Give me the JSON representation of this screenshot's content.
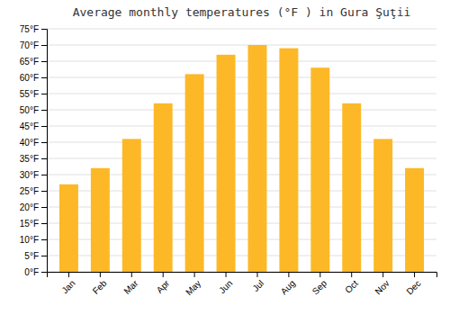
{
  "chart_data": {
    "type": "bar",
    "title": "Average monthly temperatures (°F ) in Gura Şuţii",
    "categories": [
      "Jan",
      "Feb",
      "Mar",
      "Apr",
      "May",
      "Jun",
      "Jul",
      "Aug",
      "Sep",
      "Oct",
      "Nov",
      "Dec"
    ],
    "values": [
      27,
      32,
      41,
      52,
      61,
      67,
      70,
      69,
      63,
      52,
      41,
      32
    ],
    "color": "#FDB827",
    "ylim": [
      0,
      75
    ],
    "yticks": [
      {
        "value": 0,
        "label": "0°F"
      },
      {
        "value": 5,
        "label": "5°F"
      },
      {
        "value": 10,
        "label": "10°F"
      },
      {
        "value": 15,
        "label": "15°F"
      },
      {
        "value": 20,
        "label": "20°F"
      },
      {
        "value": 25,
        "label": "25°F"
      },
      {
        "value": 30,
        "label": "30°F"
      },
      {
        "value": 35,
        "label": "35°F"
      },
      {
        "value": 40,
        "label": "40°F"
      },
      {
        "value": 45,
        "label": "45°F"
      },
      {
        "value": 50,
        "label": "50°F"
      },
      {
        "value": 55,
        "label": "55°F"
      },
      {
        "value": 60,
        "label": "60°F"
      },
      {
        "value": 65,
        "label": "65°F"
      },
      {
        "value": 70,
        "label": "70°F"
      },
      {
        "value": 75,
        "label": "75°F"
      }
    ],
    "grid": true
  }
}
